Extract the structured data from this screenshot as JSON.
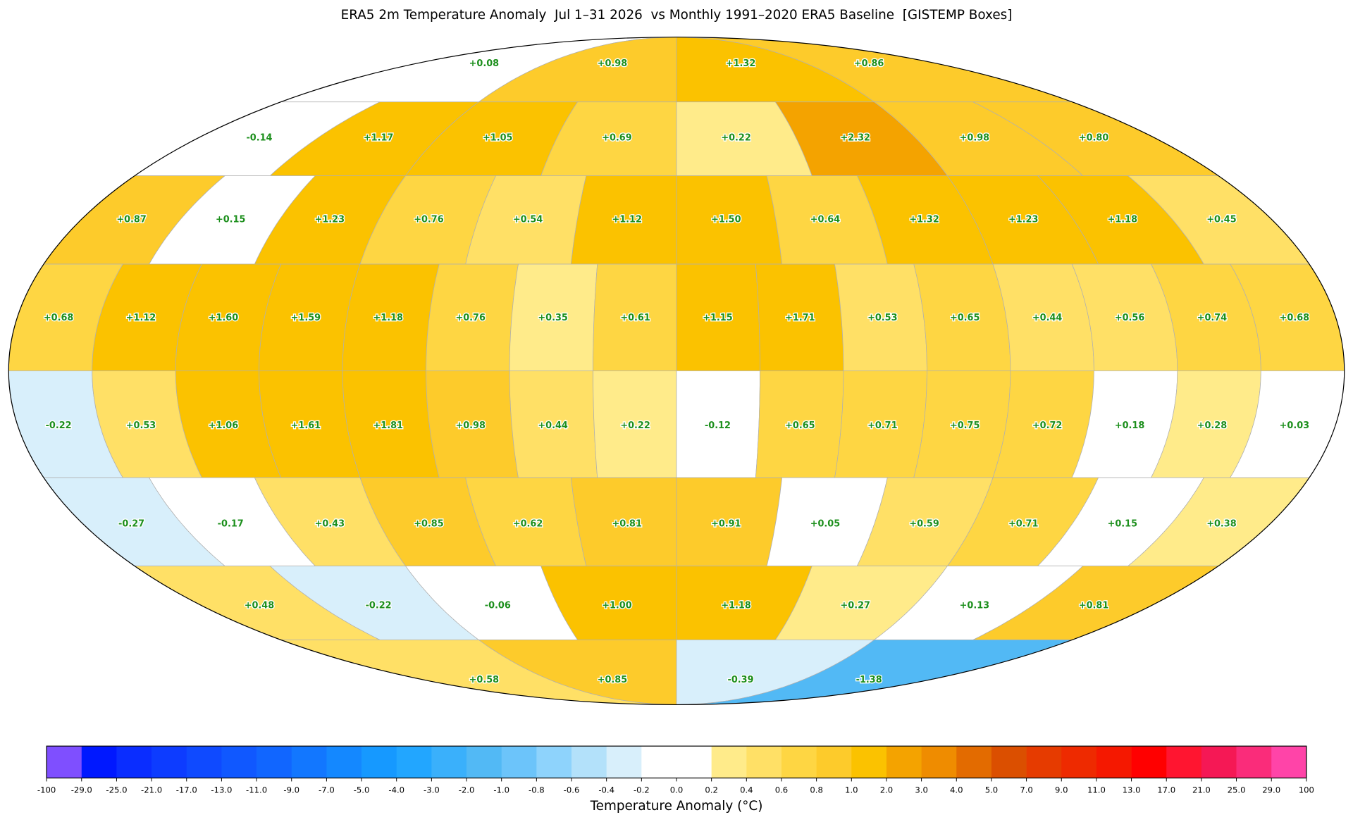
{
  "title": "ERA5 2m Temperature Anomaly  Jul 1–31 2026  vs Monthly 1991–2020 ERA5 Baseline  [GISTEMP Boxes]",
  "boxes": [
    [
      "+0.08",
      "+0.98",
      "+1.32",
      "+0.86"
    ],
    [
      "-0.14",
      "+1.17",
      "+1.05",
      "+0.69",
      "+0.22",
      "+2.32",
      "+0.98",
      "+0.80"
    ],
    [
      "+0.87",
      "+0.15",
      "+1.23",
      "+0.76",
      "+0.54",
      "+1.12",
      "+1.50",
      "+0.64",
      "+1.32",
      "+1.23",
      "+1.18",
      "+0.45"
    ],
    [
      "+0.68",
      "+1.12",
      "+1.60",
      "+1.59",
      "+1.18",
      "+0.76",
      "+0.35",
      "+0.61",
      "+1.15",
      "+1.71",
      "+0.53",
      "+0.65",
      "+0.44",
      "+0.56",
      "+0.74",
      "+0.68"
    ],
    [
      "-0.22",
      "+0.53",
      "+1.06",
      "+1.61",
      "+1.81",
      "+0.98",
      "+0.44",
      "+0.22",
      "-0.12",
      "+0.65",
      "+0.71",
      "+0.75",
      "+0.72",
      "+0.18",
      "+0.28",
      "+0.03"
    ],
    [
      "-0.27",
      "-0.17",
      "+0.43",
      "+0.85",
      "+0.62",
      "+0.81",
      "+0.91",
      "+0.05",
      "+0.59",
      "+0.71",
      "+0.15",
      "+0.38"
    ],
    [
      "+0.48",
      "-0.22",
      "-0.06",
      "+1.00",
      "+1.18",
      "+0.27",
      "+0.13",
      "+0.81"
    ],
    [
      "+0.58",
      "+0.85",
      "-0.39",
      "-1.38"
    ]
  ],
  "colorbar": {
    "ticks": [
      "-100",
      "-29.0",
      "-25.0",
      "-21.0",
      "-17.0",
      "-13.0",
      "-11.0",
      "-9.0",
      "-7.0",
      "-5.0",
      "-4.0",
      "-3.0",
      "-2.0",
      "-1.0",
      "-0.8",
      "-0.6",
      "-0.4",
      "-0.2",
      "0.0",
      "0.2",
      "0.4",
      "0.6",
      "0.8",
      "1.0",
      "2.0",
      "3.0",
      "4.0",
      "5.0",
      "7.0",
      "9.0",
      "11.0",
      "13.0",
      "17.0",
      "21.0",
      "25.0",
      "29.0",
      "100"
    ],
    "colors": [
      "#7f4fff",
      "#0018ff",
      "#0a2dff",
      "#0d3cff",
      "#0f4aff",
      "#1058ff",
      "#1166ff",
      "#1277ff",
      "#1488ff",
      "#1699ff",
      "#22a6ff",
      "#3ab0fb",
      "#52b9f5",
      "#6cc4fa",
      "#8ed3fc",
      "#b3e1fa",
      "#d8effb",
      "#ffffff",
      "#ffffff",
      "#ffeb8a",
      "#ffe066",
      "#fed643",
      "#fdcb2b",
      "#fbc200",
      "#f4a300",
      "#ef8c00",
      "#e36b00",
      "#db4f00",
      "#e63b00",
      "#ee2a00",
      "#f51800",
      "#ff0000",
      "#ff1530",
      "#f51855",
      "#fa2c7a",
      "#ff44a8"
    ],
    "label": "Temperature Anomaly (°C)"
  }
}
